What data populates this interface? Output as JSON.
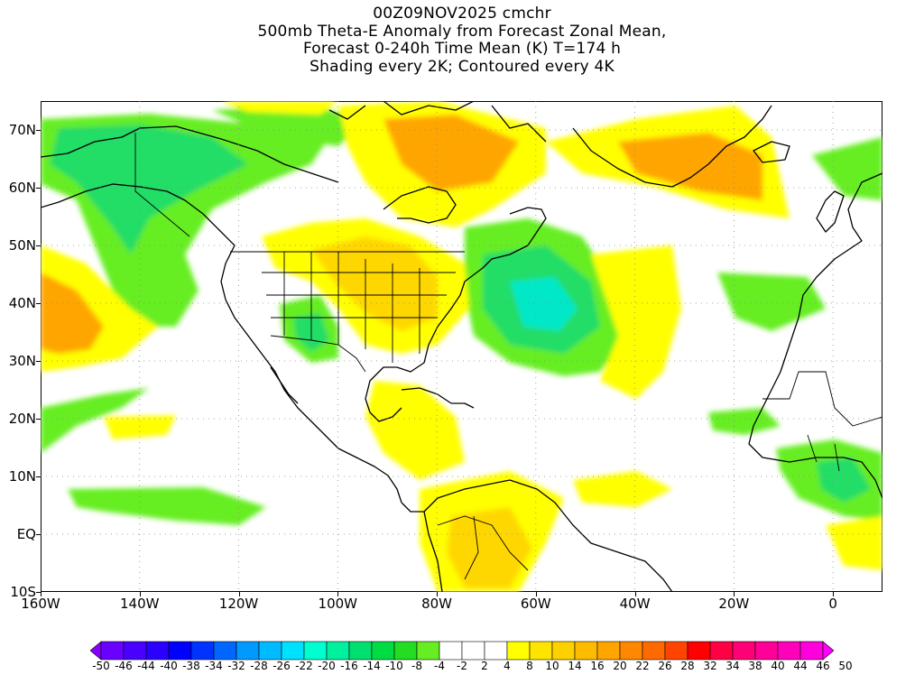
{
  "title": {
    "line1": "00Z09NOV2025 cmchr",
    "line2": "500mb Theta-E Anomaly from Forecast Zonal Mean,",
    "line3": "Forecast 0-240h Time Mean (K) T=174 h",
    "line4": "Shading every 2K; Contoured every 4K"
  },
  "map": {
    "lat_labels": [
      "70N",
      "60N",
      "50N",
      "40N",
      "30N",
      "20N",
      "10N",
      "EQ",
      "10S"
    ],
    "lon_labels": [
      "160W",
      "140W",
      "120W",
      "100W",
      "80W",
      "60W",
      "40W",
      "20W",
      "0"
    ],
    "lat_values": [
      70,
      60,
      50,
      40,
      30,
      20,
      10,
      0,
      -10
    ],
    "lon_values": [
      -160,
      -140,
      -120,
      -100,
      -80,
      -60,
      -40,
      -20,
      0
    ],
    "extent": {
      "lon_min": -160,
      "lon_max": 10,
      "lat_min": -10,
      "lat_max": 75
    },
    "colors": {
      "pos_light": "#ffff00",
      "pos_mid": "#ffd700",
      "pos_strong": "#ffa500",
      "neg_light": "#66ee22",
      "neg_mid": "#22dd66",
      "neg_strong": "#00e8c8"
    }
  },
  "colorbar": {
    "labels": [
      "-50",
      "-46",
      "-44",
      "-40",
      "-38",
      "-34",
      "-32",
      "-28",
      "-26",
      "-22",
      "-20",
      "-16",
      "-14",
      "-10",
      "-8",
      "-4",
      "-2",
      "2",
      "4",
      "8",
      "10",
      "14",
      "16",
      "20",
      "22",
      "26",
      "28",
      "32",
      "34",
      "38",
      "40",
      "44",
      "46",
      "50"
    ],
    "colors": [
      "#8a00ff",
      "#6a00ff",
      "#4a00ff",
      "#2a00ff",
      "#0000ff",
      "#0033ff",
      "#0066ff",
      "#0099ff",
      "#00bbff",
      "#00e0ff",
      "#00ffd0",
      "#00f0a0",
      "#00e070",
      "#00dd44",
      "#22dd22",
      "#66ee22",
      "#ffffff",
      "#ffffff",
      "#ffffff",
      "#ffff00",
      "#ffe400",
      "#ffd000",
      "#ffbb00",
      "#ffa500",
      "#ff8800",
      "#ff6a00",
      "#ff4400",
      "#ff0000",
      "#ff0044",
      "#ff0077",
      "#ff0099",
      "#ff00bb",
      "#ff00dd",
      "#ff00ff"
    ]
  }
}
